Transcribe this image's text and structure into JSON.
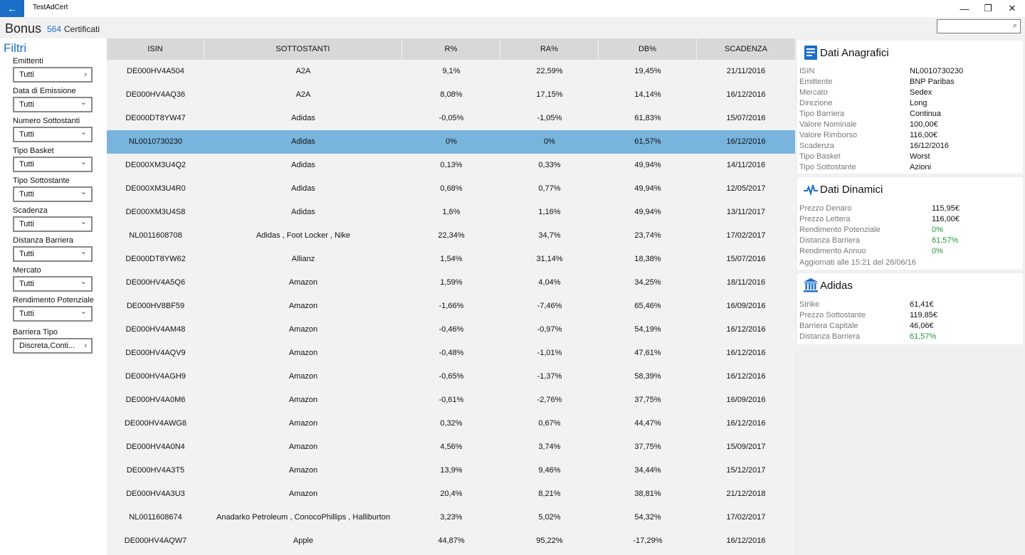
{
  "app": {
    "title": "TestAdCert",
    "back_symbol": "←",
    "minimize_symbol": "—",
    "restore_symbol": "❐",
    "close_symbol": "✕"
  },
  "header": {
    "title": "Bonus",
    "count": "564",
    "count_label": "Certificati",
    "search_placeholder": "",
    "search_value": ""
  },
  "filters": {
    "title": "Filtri",
    "items": [
      {
        "label": "Emittenti",
        "value": "Tutti",
        "icon": "chevron-right-icon"
      },
      {
        "label": "Data di Emissione",
        "value": "Tutti",
        "icon": "chevron-down-icon"
      },
      {
        "label": "Numero Sottostanti",
        "value": "Tutti",
        "icon": "chevron-down-icon"
      },
      {
        "label": "Tipo Basket",
        "value": "Tutti",
        "icon": "chevron-down-icon"
      },
      {
        "label": "Tipo Sottostante",
        "value": "Tutti",
        "icon": "chevron-down-icon"
      },
      {
        "label": "Scadenza",
        "value": "Tutti",
        "icon": "chevron-down-icon"
      },
      {
        "label": "Distanza Barriera",
        "value": "Tutti",
        "icon": "chevron-down-icon"
      },
      {
        "label": "Mercato",
        "value": "Tutti",
        "icon": "chevron-down-icon"
      },
      {
        "label": "Rendimento Potenziale",
        "value": "Tutti",
        "icon": "chevron-down-icon"
      },
      {
        "label": "Barriera Tipo",
        "value": "Discreta,Conti...",
        "icon": "chevron-right-icon"
      }
    ]
  },
  "table": {
    "columns": [
      "ISIN",
      "SOTTOSTANTI",
      "R%",
      "RA%",
      "DB%",
      "SCADENZA"
    ],
    "selected_index": 3,
    "rows": [
      [
        "DE000HV4A504",
        "A2A",
        "9,1%",
        "22,59%",
        "19,45%",
        "21/11/2016"
      ],
      [
        "DE000HV4AQ36",
        "A2A",
        "8,08%",
        "17,15%",
        "14,14%",
        "16/12/2016"
      ],
      [
        "DE000DT8YW47",
        "Adidas",
        "-0,05%",
        "-1,05%",
        "61,83%",
        "15/07/2016"
      ],
      [
        "NL0010730230",
        "Adidas",
        "0%",
        "0%",
        "61,57%",
        "16/12/2016"
      ],
      [
        "DE000XM3U4Q2",
        "Adidas",
        "0,13%",
        "0,33%",
        "49,94%",
        "14/11/2016"
      ],
      [
        "DE000XM3U4R0",
        "Adidas",
        "0,68%",
        "0,77%",
        "49,94%",
        "12/05/2017"
      ],
      [
        "DE000XM3U4S8",
        "Adidas",
        "1,6%",
        "1,16%",
        "49,94%",
        "13/11/2017"
      ],
      [
        "NL0011608708",
        "Adidas , Foot Locker , Nike",
        "22,34%",
        "34,7%",
        "23,74%",
        "17/02/2017"
      ],
      [
        "DE000DT8YW62",
        "Allianz",
        "1,54%",
        "31,14%",
        "18,38%",
        "15/07/2016"
      ],
      [
        "DE000HV4A5Q6",
        "Amazon",
        "1,59%",
        "4,04%",
        "34,25%",
        "18/11/2016"
      ],
      [
        "DE000HV8BF59",
        "Amazon",
        "-1,66%",
        "-7,46%",
        "65,46%",
        "16/09/2016"
      ],
      [
        "DE000HV4AM48",
        "Amazon",
        "-0,46%",
        "-0,97%",
        "54,19%",
        "16/12/2016"
      ],
      [
        "DE000HV4AQV9",
        "Amazon",
        "-0,48%",
        "-1,01%",
        "47,61%",
        "16/12/2016"
      ],
      [
        "DE000HV4AGH9",
        "Amazon",
        "-0,65%",
        "-1,37%",
        "58,39%",
        "16/12/2016"
      ],
      [
        "DE000HV4A0M6",
        "Amazon",
        "-0,61%",
        "-2,76%",
        "37,75%",
        "16/09/2016"
      ],
      [
        "DE000HV4AWG8",
        "Amazon",
        "0,32%",
        "0,67%",
        "44,47%",
        "16/12/2016"
      ],
      [
        "DE000HV4A0N4",
        "Amazon",
        "4,56%",
        "3,74%",
        "37,75%",
        "15/09/2017"
      ],
      [
        "DE000HV4A3T5",
        "Amazon",
        "13,9%",
        "9,46%",
        "34,44%",
        "15/12/2017"
      ],
      [
        "DE000HV4A3U3",
        "Amazon",
        "20,4%",
        "8,21%",
        "38,81%",
        "21/12/2018"
      ],
      [
        "NL0011608674",
        "Anadarko Petroleum , ConocoPhillips , Halliburton",
        "3,23%",
        "5,02%",
        "54,32%",
        "17/02/2017"
      ],
      [
        "DE000HV4AQW7",
        "Apple",
        "44,87%",
        "95,22%",
        "-17,29%",
        "16/12/2016"
      ]
    ]
  },
  "anagrafici": {
    "title": "Dati Anagrafici",
    "icon": "document-icon",
    "fields": [
      {
        "k": "ISIN",
        "v": "NL0010730230"
      },
      {
        "k": "Emittente",
        "v": "BNP Paribas"
      },
      {
        "k": "Mercato",
        "v": "Sedex"
      },
      {
        "k": "Direzione",
        "v": "Long"
      },
      {
        "k": "Tipo Barriera",
        "v": "Continua"
      },
      {
        "k": "Valore Nominale",
        "v": "100,00€"
      },
      {
        "k": "Valore Rimborso",
        "v": "116,00€"
      },
      {
        "k": "Scadenza",
        "v": "16/12/2016"
      },
      {
        "k": "Tipo Basket",
        "v": "Worst"
      },
      {
        "k": "Tipo Sottostante",
        "v": "Azioni"
      }
    ]
  },
  "dinamici": {
    "title": "Dati Dinamici",
    "icon": "pulse-icon",
    "fields": [
      {
        "k": "Prezzo Denaro",
        "v": "115,95€",
        "green": false
      },
      {
        "k": "Prezzo Lettera",
        "v": "116,00€",
        "green": false
      },
      {
        "k": "Rendimento Potenziale",
        "v": "0%",
        "green": true
      },
      {
        "k": "Distanza Barriera",
        "v": "61,57%",
        "green": true
      },
      {
        "k": "Rendimento Annuo",
        "v": "0%",
        "green": true
      }
    ],
    "updated": "Aggiornati alle 15:21 del 26/06/16"
  },
  "sottostante": {
    "title": "Adidas",
    "icon": "bank-icon",
    "fields": [
      {
        "k": "Strike",
        "v": "61,41€",
        "green": false
      },
      {
        "k": "Prezzo Sottostante",
        "v": "119,85€",
        "green": false
      },
      {
        "k": "Barriera Capitale",
        "v": "46,06€",
        "green": false
      },
      {
        "k": "Distanza Barriera",
        "v": "61,57%",
        "green": true
      }
    ]
  },
  "colors": {
    "accent": "#1b6fc8",
    "selected_row": "#79b4dd",
    "positive": "#1f9a3a"
  }
}
